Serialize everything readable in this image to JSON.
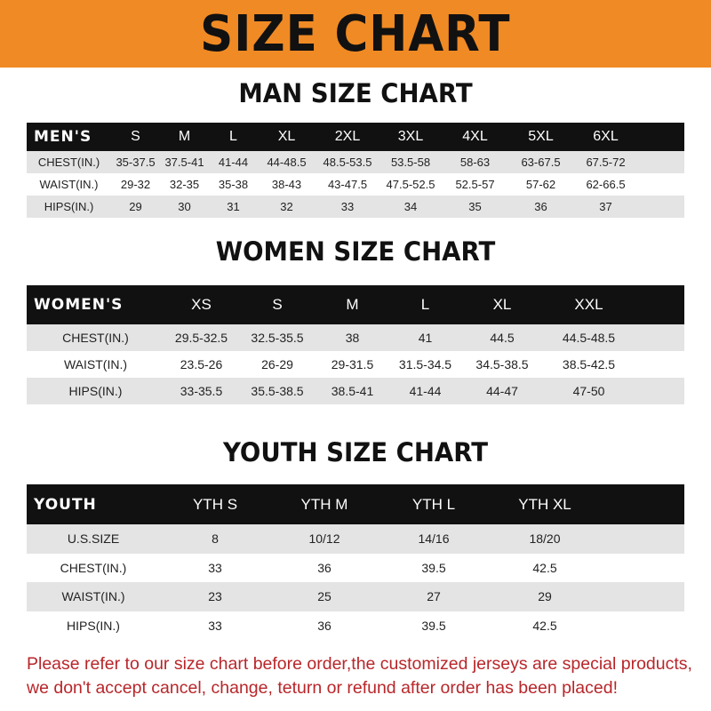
{
  "banner": {
    "title": "SIZE CHART",
    "color": "#f08a24"
  },
  "men": {
    "title": "MAN SIZE CHART",
    "header": [
      "MEN'S",
      "S",
      "M",
      "L",
      "XL",
      "2XL",
      "3XL",
      "4XL",
      "5XL",
      "6XL"
    ],
    "rows": [
      [
        "CHEST(IN.)",
        "35-37.5",
        "37.5-41",
        "41-44",
        "44-48.5",
        "48.5-53.5",
        "53.5-58",
        "58-63",
        "63-67.5",
        "67.5-72"
      ],
      [
        "WAIST(IN.)",
        "29-32",
        "32-35",
        "35-38",
        "38-43",
        "43-47.5",
        "47.5-52.5",
        "52.5-57",
        "57-62",
        "62-66.5"
      ],
      [
        "HIPS(IN.)",
        "29",
        "30",
        "31",
        "32",
        "33",
        "34",
        "35",
        "36",
        "37"
      ]
    ]
  },
  "women": {
    "title": "WOMEN SIZE CHART",
    "header": [
      "WOMEN'S",
      "XS",
      "S",
      "M",
      "L",
      "XL",
      "XXL"
    ],
    "rows": [
      [
        "CHEST(IN.)",
        "29.5-32.5",
        "32.5-35.5",
        "38",
        "41",
        "44.5",
        "44.5-48.5"
      ],
      [
        "WAIST(IN.)",
        "23.5-26",
        "26-29",
        "29-31.5",
        "31.5-34.5",
        "34.5-38.5",
        "38.5-42.5"
      ],
      [
        "HIPS(IN.)",
        "33-35.5",
        "35.5-38.5",
        "38.5-41",
        "41-44",
        "44-47",
        "47-50"
      ]
    ]
  },
  "youth": {
    "title": "YOUTH SIZE CHART",
    "header": [
      "YOUTH",
      "YTH S",
      "YTH M",
      "YTH L",
      "YTH XL"
    ],
    "rows": [
      [
        "U.S.SIZE",
        "8",
        "10/12",
        "14/16",
        "18/20"
      ],
      [
        "CHEST(IN.)",
        "33",
        "36",
        "39.5",
        "42.5"
      ],
      [
        "WAIST(IN.)",
        "23",
        "25",
        "27",
        "29"
      ],
      [
        "HIPS(IN.)",
        "33",
        "36",
        "39.5",
        "42.5"
      ]
    ]
  },
  "note": {
    "text": "Please refer to our size chart before order,the customized jerseys are special products, we don't accept cancel, change, teturn or refund after order has been placed!",
    "color": "#b8262a"
  }
}
